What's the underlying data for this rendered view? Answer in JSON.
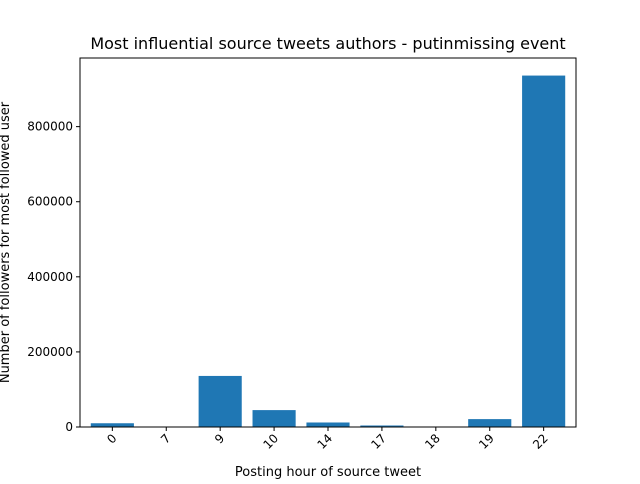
{
  "chart_data": {
    "type": "bar",
    "title": "Most influential source tweets authors - putinmissing event",
    "xlabel": "Posting hour of source tweet",
    "ylabel": "Number of followers for most followed user",
    "categories": [
      "0",
      "7",
      "9",
      "10",
      "14",
      "17",
      "18",
      "19",
      "22"
    ],
    "values": [
      10000,
      500,
      136000,
      45000,
      12000,
      4000,
      1000,
      21000,
      936000
    ],
    "ylim": [
      0,
      982800
    ],
    "yticks": [
      0,
      200000,
      400000,
      600000,
      800000
    ],
    "ytick_labels": [
      "0",
      "200000",
      "400000",
      "600000",
      "800000"
    ],
    "xtick_rotation_deg": 45,
    "grid": false,
    "legend": "none",
    "bar_color": "#1f77b4"
  }
}
